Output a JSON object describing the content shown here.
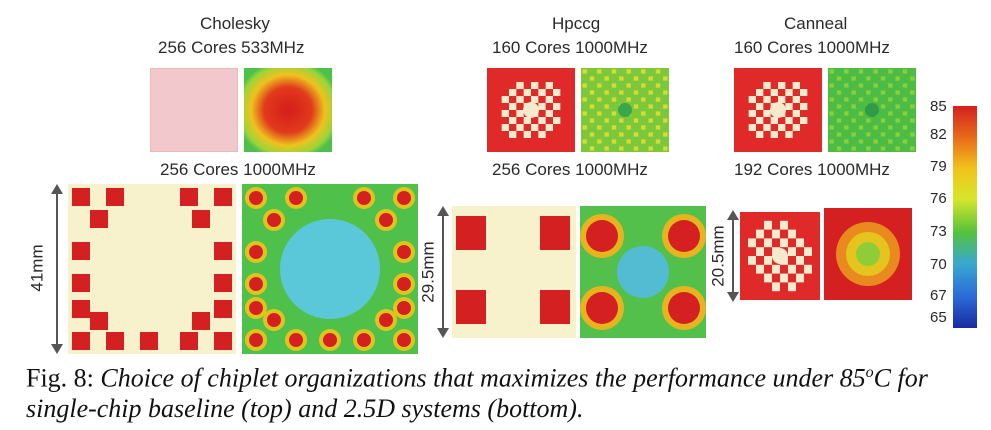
{
  "labels": {
    "cholesky_title": "Cholesky",
    "cholesky_top": "256 Cores 533MHz",
    "cholesky_bottom": "256 Cores 1000MHz",
    "hpccg_title": "Hpccg",
    "hpccg_top": "160 Cores 1000MHz",
    "hpccg_bottom": "256 Cores 1000MHz",
    "canneal_title": "Canneal",
    "canneal_top": "160 Cores 1000MHz",
    "canneal_bottom": "192 Cores 1000MHz"
  },
  "dimensions": {
    "d1": "41mm",
    "d2": "29.5mm",
    "d3": "20.5mm"
  },
  "colorbar": {
    "ticks": [
      "85",
      "82",
      "79",
      "76",
      "73",
      "70",
      "67",
      "65"
    ],
    "colors": [
      "#d42020",
      "#e86a1a",
      "#f2c21c",
      "#d6e62a",
      "#54c23c",
      "#3aa8d0",
      "#2a6ad8",
      "#1a2aa0"
    ]
  },
  "caption": {
    "prefix": "Fig. 8: ",
    "text": "Choice of chiplet organizations that maximizes the performance under 85",
    "superscript": "o",
    "text2": "C for single-chip baseline (top) and 2.5D systems (bottom)."
  }
}
